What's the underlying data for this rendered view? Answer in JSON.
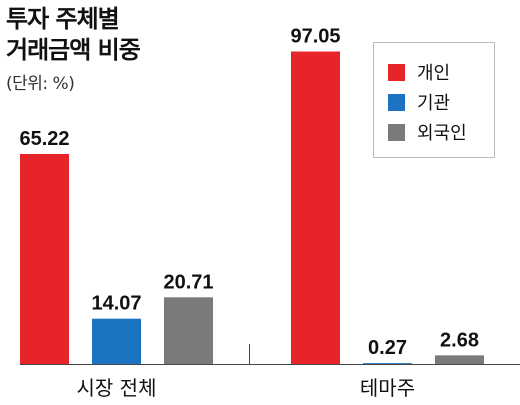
{
  "title": {
    "line1": "투자 주체별",
    "line2": "거래금액 비중",
    "unit": "(단위: %)"
  },
  "legend": [
    {
      "label": "개인",
      "color": "#e8242b"
    },
    {
      "label": "기관",
      "color": "#1c73c2"
    },
    {
      "label": "외국인",
      "color": "#7a7a7a"
    }
  ],
  "chart_data": {
    "type": "bar",
    "title": "투자 주체별 거래금액 비중",
    "unit": "(단위: %)",
    "categories": [
      "시장 전체",
      "테마주"
    ],
    "series": [
      {
        "name": "개인",
        "color": "#e8242b",
        "values": [
          65.22,
          97.05
        ],
        "labels": [
          "65.22",
          "97.05"
        ]
      },
      {
        "name": "기관",
        "color": "#1c73c2",
        "values": [
          14.07,
          0.27
        ],
        "labels": [
          "14.07",
          "0.27"
        ]
      },
      {
        "name": "외국인",
        "color": "#7a7a7a",
        "values": [
          20.71,
          2.68
        ],
        "labels": [
          "20.71",
          "2.68"
        ]
      }
    ],
    "ylim": [
      0,
      100
    ],
    "grid": false,
    "legend_position": "top-right"
  }
}
